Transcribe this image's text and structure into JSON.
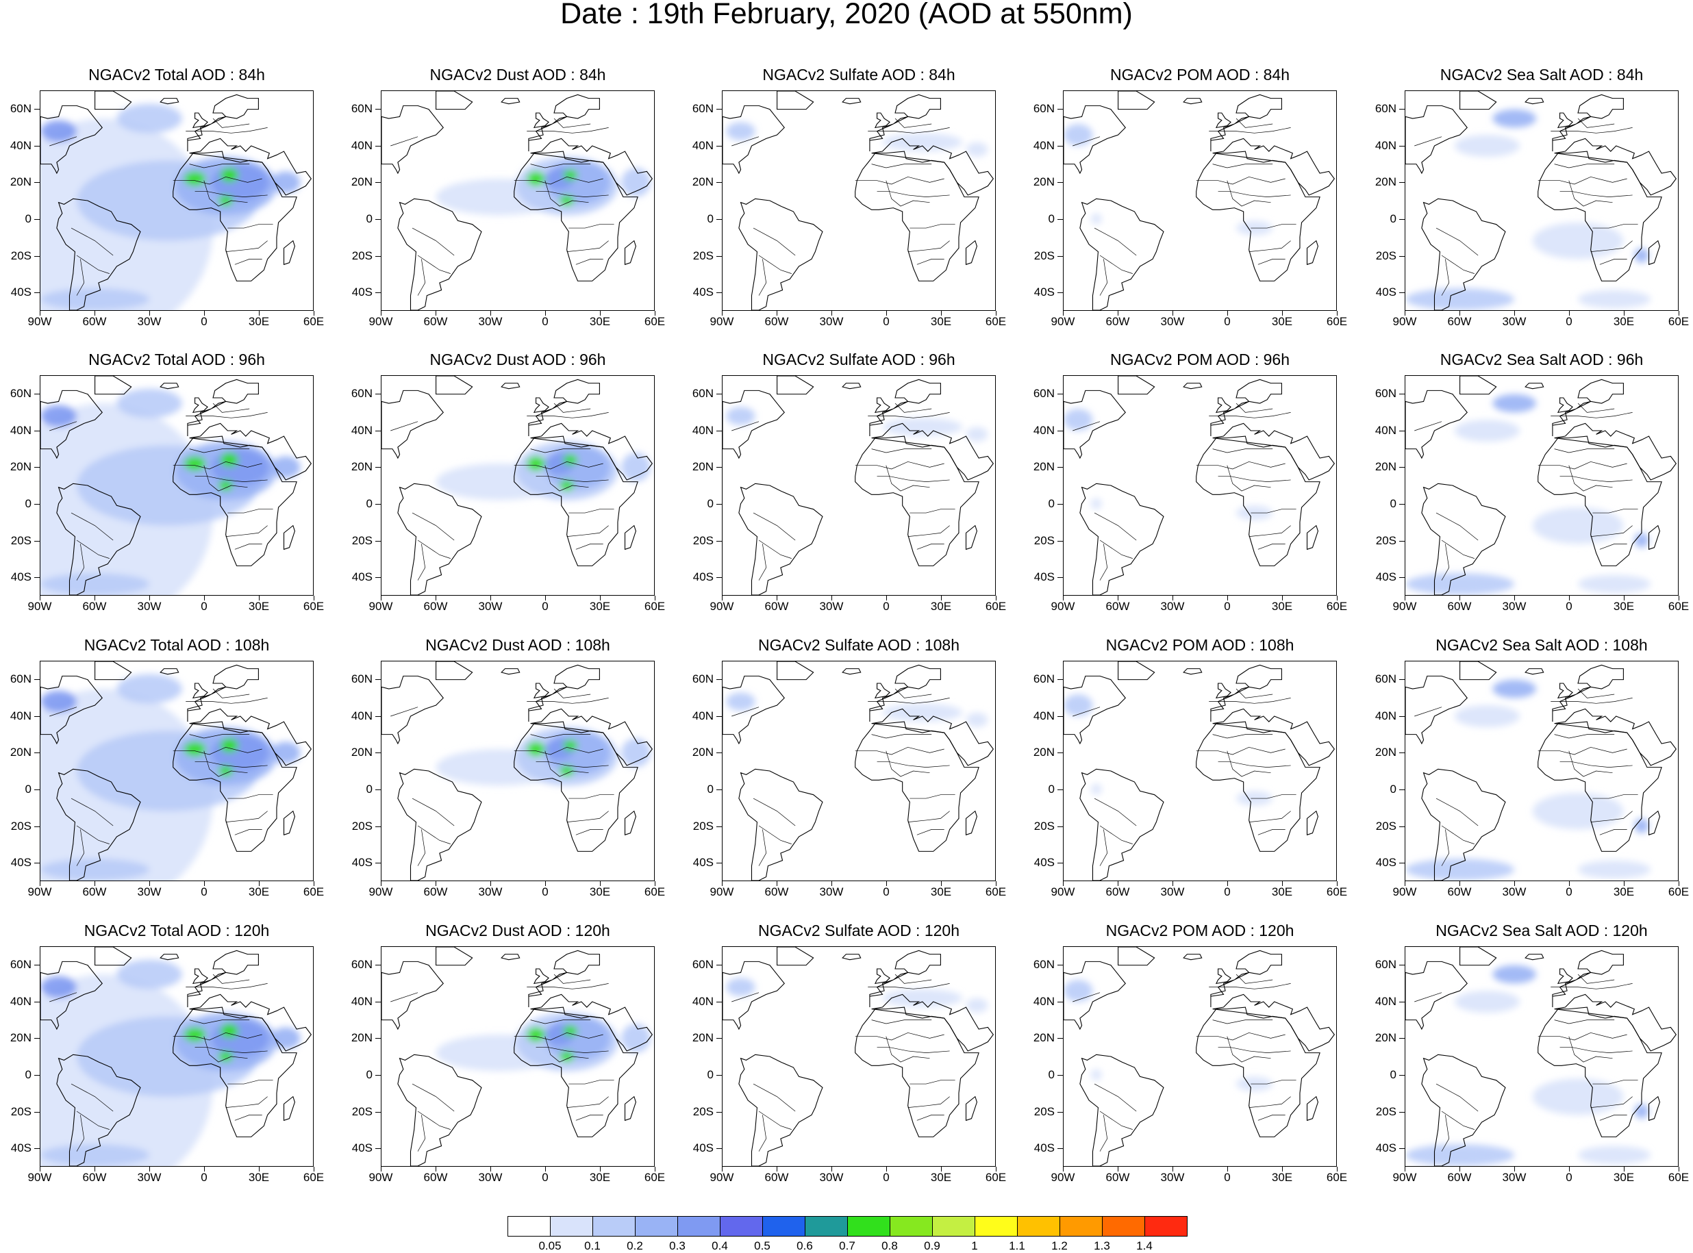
{
  "title": "Date : 19th February, 2020 (AOD at 550nm)",
  "lat_labels": [
    "60N",
    "40N",
    "20N",
    "0",
    "20S",
    "40S"
  ],
  "lon_labels": [
    "90W",
    "60W",
    "30W",
    "0",
    "30E",
    "60E"
  ],
  "species": [
    "Total",
    "Dust",
    "Sulfate",
    "POM",
    "Sea Salt"
  ],
  "lead_times": [
    "84h",
    "96h",
    "108h",
    "120h"
  ],
  "panels": [
    [
      "NGACv2 Total AOD : 84h",
      "NGACv2 Dust AOD : 84h",
      "NGACv2 Sulfate AOD : 84h",
      "NGACv2 POM AOD : 84h",
      "NGACv2 Sea Salt AOD : 84h"
    ],
    [
      "NGACv2 Total AOD : 96h",
      "NGACv2 Dust AOD : 96h",
      "NGACv2 Sulfate AOD : 96h",
      "NGACv2 POM AOD : 96h",
      "NGACv2 Sea Salt AOD : 96h"
    ],
    [
      "NGACv2 Total AOD : 108h",
      "NGACv2 Dust AOD : 108h",
      "NGACv2 Sulfate AOD : 108h",
      "NGACv2 POM AOD : 108h",
      "NGACv2 Sea Salt AOD : 108h"
    ],
    [
      "NGACv2 Total AOD : 120h",
      "NGACv2 Dust AOD : 120h",
      "NGACv2 Sulfate AOD : 120h",
      "NGACv2 POM AOD : 120h",
      "NGACv2 Sea Salt  AOD : 120h"
    ]
  ],
  "map_extent": {
    "lon_min": -90,
    "lon_max": 60,
    "lat_min": -50,
    "lat_max": 70
  },
  "colorbar": {
    "labels": [
      "0.05",
      "0.1",
      "0.2",
      "0.3",
      "0.4",
      "0.5",
      "0.6",
      "0.7",
      "0.8",
      "0.9",
      "1",
      "1.1",
      "1.2",
      "1.3",
      "1.4"
    ],
    "colors": [
      "#ffffff",
      "#d9e3fb",
      "#b9ccf8",
      "#99b3f5",
      "#7f9af2",
      "#6268ed",
      "#1f62ed",
      "#1f9a9a",
      "#31e01c",
      "#86e81f",
      "#c4ef42",
      "#fffd1a",
      "#ffc100",
      "#ff9a00",
      "#ff6a00",
      "#ff2a10"
    ]
  }
}
